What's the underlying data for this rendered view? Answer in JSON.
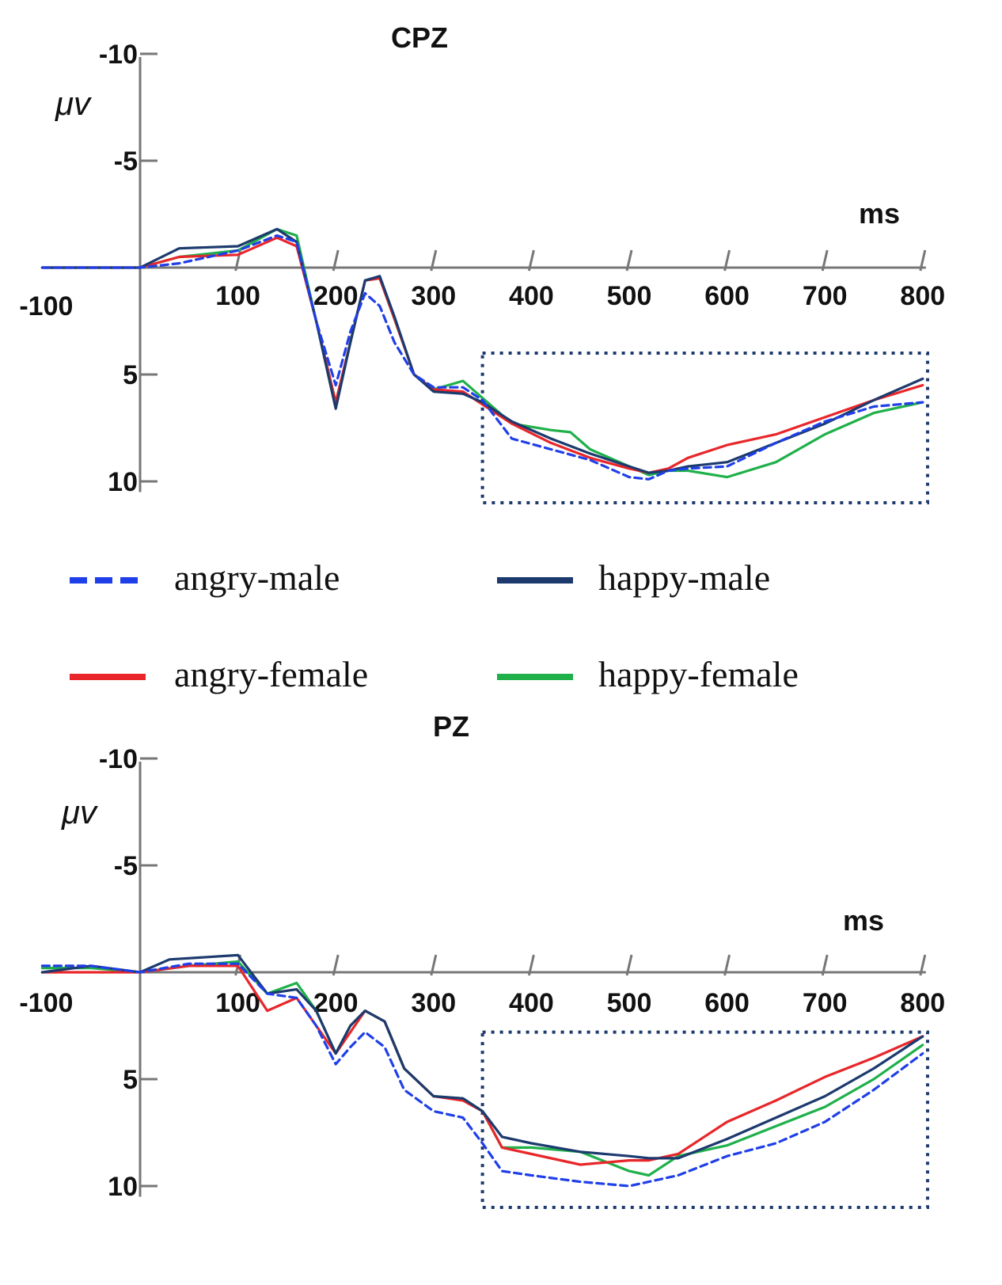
{
  "legend": [
    {
      "label": "angry-male",
      "color": "#1f3fe8",
      "dashed": true
    },
    {
      "label": "happy-male",
      "color": "#1c3a6e",
      "dashed": false
    },
    {
      "label": "angry-female",
      "color": "#e8262a",
      "dashed": false
    },
    {
      "label": "happy-female",
      "color": "#1fb04a",
      "dashed": false
    }
  ],
  "chart_data": [
    {
      "type": "line",
      "title": "CPZ",
      "ylabel": "μv",
      "xlabel": "ms",
      "xlim": [
        -100,
        800
      ],
      "ylim": [
        -10,
        10
      ],
      "y_inverted": true,
      "x_ticks": [
        -100,
        100,
        200,
        300,
        400,
        500,
        600,
        700,
        800
      ],
      "y_ticks": [
        -10,
        -5,
        5,
        10
      ],
      "highlight_window": {
        "x": [
          350,
          805
        ],
        "y": [
          4,
          11
        ]
      },
      "series": [
        {
          "name": "angry-male",
          "color": "#1f3fe8",
          "dashed": true,
          "x": [
            -100,
            -50,
            0,
            40,
            100,
            140,
            160,
            180,
            200,
            215,
            230,
            245,
            260,
            280,
            300,
            330,
            350,
            380,
            420,
            460,
            500,
            520,
            540,
            560,
            600,
            650,
            700,
            750,
            800
          ],
          "y": [
            0,
            0,
            0,
            -0.2,
            -0.8,
            -1.5,
            -1.2,
            2.5,
            5.5,
            3,
            1.2,
            1.8,
            3.5,
            5,
            5.6,
            5.6,
            6.2,
            8,
            8.5,
            9,
            9.8,
            9.9,
            9.5,
            9.4,
            9.3,
            8.2,
            7.2,
            6.5,
            6.3
          ]
        },
        {
          "name": "happy-male",
          "color": "#1c3a6e",
          "dashed": false,
          "x": [
            -100,
            -50,
            0,
            40,
            100,
            140,
            160,
            180,
            200,
            215,
            230,
            245,
            260,
            280,
            300,
            330,
            350,
            380,
            420,
            460,
            500,
            520,
            540,
            560,
            600,
            650,
            700,
            750,
            800
          ],
          "y": [
            0,
            0,
            0,
            -0.9,
            -1,
            -1.8,
            -1.2,
            2.5,
            6.6,
            3.5,
            0.6,
            0.4,
            2.3,
            5,
            5.8,
            5.9,
            6.3,
            7.2,
            8,
            8.7,
            9.3,
            9.6,
            9.5,
            9.3,
            9.1,
            8.2,
            7.3,
            6.2,
            5.2
          ]
        },
        {
          "name": "angry-female",
          "color": "#e8262a",
          "dashed": false,
          "x": [
            -100,
            -50,
            0,
            40,
            100,
            140,
            160,
            180,
            200,
            215,
            230,
            245,
            260,
            280,
            300,
            330,
            350,
            380,
            420,
            460,
            500,
            520,
            540,
            560,
            600,
            650,
            700,
            750,
            800
          ],
          "y": [
            0,
            0,
            0,
            -0.5,
            -0.6,
            -1.4,
            -1,
            2.5,
            6.3,
            3.5,
            0.6,
            0.5,
            2.4,
            5,
            5.7,
            5.8,
            6.4,
            7.3,
            8.2,
            8.9,
            9.4,
            9.6,
            9.4,
            8.9,
            8.3,
            7.8,
            7,
            6.2,
            5.5
          ]
        },
        {
          "name": "happy-female",
          "color": "#1fb04a",
          "dashed": false,
          "x": [
            -100,
            -50,
            0,
            40,
            100,
            140,
            160,
            180,
            200,
            215,
            230,
            245,
            260,
            280,
            300,
            330,
            350,
            380,
            420,
            440,
            460,
            500,
            520,
            540,
            560,
            600,
            650,
            700,
            750,
            800
          ],
          "y": [
            0,
            0,
            0,
            -0.5,
            -0.8,
            -1.8,
            -1.5,
            2.5,
            6.3,
            3.5,
            0.6,
            0.5,
            2.4,
            5,
            5.7,
            5.3,
            6.1,
            7.3,
            7.6,
            7.7,
            8.5,
            9.3,
            9.7,
            9.5,
            9.5,
            9.8,
            9.1,
            7.8,
            6.8,
            6.3
          ]
        }
      ]
    },
    {
      "type": "line",
      "title": "PZ",
      "ylabel": "μv",
      "xlabel": "ms",
      "xlim": [
        -100,
        800
      ],
      "ylim": [
        -10,
        10
      ],
      "y_inverted": true,
      "x_ticks": [
        -100,
        100,
        200,
        300,
        400,
        500,
        600,
        700,
        800
      ],
      "y_ticks": [
        -10,
        -5,
        5,
        10
      ],
      "highlight_window": {
        "x": [
          350,
          805
        ],
        "y": [
          2.8,
          11
        ]
      },
      "series": [
        {
          "name": "angry-male",
          "color": "#1f3fe8",
          "dashed": true,
          "x": [
            -100,
            -50,
            0,
            50,
            100,
            130,
            160,
            180,
            200,
            215,
            230,
            250,
            270,
            300,
            330,
            350,
            370,
            400,
            450,
            500,
            550,
            600,
            650,
            700,
            750,
            800
          ],
          "y": [
            -0.3,
            -0.3,
            0,
            -0.4,
            -0.4,
            1,
            1.2,
            2.5,
            4.3,
            3.5,
            2.8,
            3.5,
            5.5,
            6.5,
            6.8,
            8,
            9.3,
            9.5,
            9.8,
            10,
            9.5,
            8.6,
            8,
            7,
            5.5,
            3.8
          ]
        },
        {
          "name": "happy-male",
          "color": "#1c3a6e",
          "dashed": false,
          "x": [
            -100,
            -50,
            0,
            30,
            100,
            130,
            160,
            180,
            200,
            215,
            230,
            250,
            270,
            300,
            330,
            350,
            370,
            400,
            450,
            500,
            520,
            550,
            600,
            650,
            700,
            750,
            800
          ],
          "y": [
            0,
            -0.3,
            0,
            -0.6,
            -0.8,
            1,
            0.8,
            1.8,
            3.8,
            2.5,
            1.8,
            2.3,
            4.5,
            5.8,
            5.9,
            6.5,
            7.7,
            8,
            8.4,
            8.6,
            8.7,
            8.7,
            7.8,
            6.8,
            5.8,
            4.5,
            3
          ]
        },
        {
          "name": "angry-female",
          "color": "#e8262a",
          "dashed": false,
          "x": [
            -100,
            -50,
            0,
            50,
            100,
            130,
            160,
            180,
            200,
            215,
            230,
            250,
            270,
            300,
            330,
            350,
            370,
            400,
            450,
            500,
            520,
            550,
            600,
            650,
            700,
            750,
            800
          ],
          "y": [
            0,
            0,
            0,
            -0.3,
            -0.3,
            1.8,
            1.2,
            2.5,
            3.8,
            2.8,
            1.8,
            2.3,
            4.5,
            5.8,
            6,
            6.5,
            8.2,
            8.5,
            9,
            8.8,
            8.8,
            8.5,
            7,
            6,
            4.9,
            4,
            3
          ]
        },
        {
          "name": "happy-female",
          "color": "#1fb04a",
          "dashed": false,
          "x": [
            -100,
            -50,
            0,
            50,
            100,
            130,
            160,
            180,
            200,
            215,
            230,
            250,
            270,
            300,
            330,
            350,
            370,
            400,
            450,
            500,
            520,
            550,
            600,
            650,
            700,
            750,
            800
          ],
          "y": [
            -0.2,
            -0.2,
            0,
            -0.3,
            -0.5,
            1,
            0.5,
            1.8,
            3.8,
            2.5,
            1.8,
            2.3,
            4.5,
            5.8,
            5.9,
            6.5,
            8.2,
            8.2,
            8.4,
            9.3,
            9.5,
            8.6,
            8.1,
            7.2,
            6.3,
            5,
            3.4
          ]
        }
      ]
    }
  ]
}
